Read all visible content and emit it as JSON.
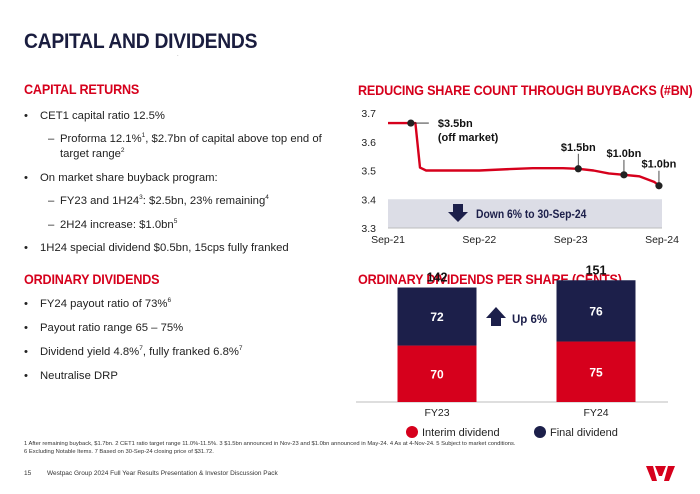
{
  "page": {
    "title": "CAPITAL AND DIVIDENDS",
    "stray_mark": "."
  },
  "capital": {
    "heading": "CAPITAL RETURNS",
    "b1": "CET1 capital ratio 12.5%",
    "s1a": "Proforma 12.1%",
    "s1a_sup": "1",
    "s1b": ", $2.7bn of capital above top end of target range",
    "s1b_sup": "2",
    "b2": "On market share buyback program:",
    "s2a": "FY23 and 1H24",
    "s2a_sup": "3",
    "s2b": ": $2.5bn, 23% remaining",
    "s2b_sup": "4",
    "s3": "2H24 increase: $1.0bn",
    "s3_sup": "5",
    "b3": "1H24 special dividend $0.5bn, 15cps fully franked"
  },
  "ordinary": {
    "heading": "ORDINARY DIVIDENDS",
    "b1": "FY24 payout ratio of 73%",
    "b1_sup": "6",
    "b2": "Payout ratio range 65 – 75%",
    "b3a": "Dividend yield 4.8%",
    "b3a_sup": "7",
    "b3b": ", fully franked 6.8%",
    "b3b_sup": "7",
    "b4": "Neutralise DRP"
  },
  "bullet_glyph": "•",
  "dash_glyph": "–",
  "footnotes": [
    "1 After remaining buyback, $1.7bn. 2 CET1 ratio target range 11.0%-11.5%. 3 $1.5bn announced in Nov-23 and $1.0bn announced in May-24. 4 As at 4-Nov-24. 5 Subject to market conditions.",
    "6 Excluding Notable Items. 7 Based on 30-Sep-24 closing price of $31.72."
  ],
  "footer": {
    "page_number": "15",
    "text": "Westpac Group 2024 Full Year Results Presentation & Investor Discussion Pack"
  },
  "colors": {
    "red": "#d6001c",
    "navy": "#1c1f4a",
    "band": "#dcdde6",
    "title": "#1a1d3f"
  },
  "icons": [
    "down-arrow-icon",
    "up-arrow-icon",
    "westpac-logo-icon"
  ],
  "chart_data": [
    {
      "type": "line",
      "title": "REDUCING SHARE COUNT THROUGH BUYBACKS (#BN)",
      "ylim": [
        3.3,
        3.7
      ],
      "yticks": [
        "3.3",
        "3.4",
        "3.5",
        "3.6",
        "3.7"
      ],
      "xlim": [
        0,
        36
      ],
      "xticks": [
        {
          "label": "Sep-21",
          "x": 0
        },
        {
          "label": "Sep-22",
          "x": 12
        },
        {
          "label": "Sep-23",
          "x": 24
        },
        {
          "label": "Sep-24",
          "x": 36
        }
      ],
      "series": [
        {
          "name": "Share count",
          "points": [
            [
              0,
              3.665
            ],
            [
              3,
              3.665
            ],
            [
              3.6,
              3.665
            ],
            [
              4.2,
              3.51
            ],
            [
              5,
              3.5
            ],
            [
              10,
              3.5
            ],
            [
              12,
              3.5
            ],
            [
              16,
              3.505
            ],
            [
              19,
              3.508
            ],
            [
              23,
              3.508
            ],
            [
              25,
              3.506
            ],
            [
              27,
              3.5
            ],
            [
              29,
              3.49
            ],
            [
              31,
              3.485
            ],
            [
              33,
              3.48
            ],
            [
              35,
              3.46
            ],
            [
              35.6,
              3.447
            ]
          ]
        }
      ],
      "markers": [
        {
          "x": 3,
          "y": 3.665,
          "label": "$3.5bn",
          "label2": "(off market)"
        },
        {
          "x": 25,
          "y": 3.506,
          "label": "$1.5bn"
        },
        {
          "x": 31,
          "y": 3.485,
          "label": "$1.0bn"
        },
        {
          "x": 35.6,
          "y": 3.447,
          "label": "$1.0bn"
        }
      ],
      "annotation": "Down 6% to 30-Sep-24",
      "annotation_band": [
        3.3,
        3.4
      ]
    },
    {
      "type": "bar",
      "stacked": true,
      "title": "ORDINARY DIVIDENDS PER SHARE (CENTS)",
      "categories": [
        "FY23",
        "FY24"
      ],
      "series": [
        {
          "name": "Interim dividend",
          "values": [
            70,
            75
          ]
        },
        {
          "name": "Final dividend",
          "values": [
            72,
            76
          ]
        }
      ],
      "totals": [
        142,
        151
      ],
      "annotation": "Up 6%",
      "ylim": [
        0,
        160
      ],
      "legend": "bottom"
    }
  ]
}
